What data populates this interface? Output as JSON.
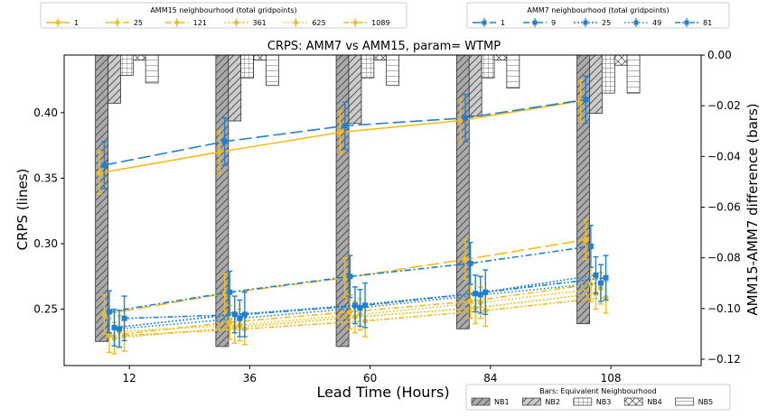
{
  "chart_data": {
    "type": "line",
    "title": "CRPS: AMM7 vs AMM15, param= WTMP",
    "xlabel": "Lead Time (Hours)",
    "ylabel": "CRPS (lines)",
    "y2label": "AMM15-AMM7 difference (bars)",
    "x_ticks": [
      12,
      36,
      60,
      84,
      108
    ],
    "xlim": [
      -1,
      126
    ],
    "ylim": [
      0.207,
      0.444
    ],
    "y_ticks": [
      0.25,
      0.3,
      0.35,
      0.4
    ],
    "y2lim": [
      -0.1225,
      0.0
    ],
    "y2_ticks": [
      -0.12,
      -0.1,
      -0.08,
      -0.06,
      -0.04,
      -0.02,
      0.0
    ],
    "grid": false,
    "legend_amm15": {
      "title": "AMM15 neighbourhood (total gridpoints)",
      "placement": "top-left",
      "color": "#f5bc16",
      "entries": [
        "1",
        "25",
        "121",
        "361",
        "625",
        "1089"
      ]
    },
    "legend_amm7": {
      "title": "AMM7 neighbourhood (total gridpoints)",
      "placement": "top-right",
      "color": "#1f80d0",
      "entries": [
        "1",
        "9",
        "25",
        "49",
        "81"
      ]
    },
    "legend_bars": {
      "title": "Bars: Equivalent Neighbourhood",
      "placement": "bottom-right",
      "entries": [
        "NB1",
        "NB2",
        "NB3",
        "NB4",
        "NB5"
      ]
    },
    "amm15_series": [
      {
        "name": "1",
        "x": [
          6,
          30,
          54,
          78,
          102
        ],
        "values": [
          0.354,
          0.37,
          0.385,
          0.394,
          0.409
        ],
        "err": 0.016,
        "dash": "solid"
      },
      {
        "name": "25",
        "x": [
          7,
          31,
          55,
          79,
          103
        ],
        "values": [
          0.246,
          0.262,
          0.274,
          0.288,
          0.303
        ],
        "err": 0.015,
        "dash": "long"
      },
      {
        "name": "121",
        "x": [
          8,
          32,
          56,
          80,
          104
        ],
        "values": [
          0.23,
          0.24,
          0.248,
          0.256,
          0.269
        ],
        "err": 0.013,
        "dash": "dashdot"
      },
      {
        "name": "361",
        "x": [
          9,
          33,
          57,
          81,
          105
        ],
        "values": [
          0.228,
          0.236,
          0.244,
          0.251,
          0.262
        ],
        "err": 0.012,
        "dash": "dot"
      },
      {
        "name": "625",
        "x": [
          10,
          34,
          58,
          82,
          106
        ],
        "values": [
          0.233,
          0.238,
          0.246,
          0.255,
          0.266
        ],
        "err": 0.012,
        "dash": "dotted-dense"
      },
      {
        "name": "1089",
        "x": [
          11,
          35,
          59,
          83,
          107
        ],
        "values": [
          0.23,
          0.235,
          0.241,
          0.249,
          0.259
        ],
        "err": 0.012,
        "dash": "dashdotdot"
      }
    ],
    "amm7_series": [
      {
        "name": "1",
        "x": [
          7,
          31,
          55,
          79,
          103
        ],
        "values": [
          0.36,
          0.378,
          0.39,
          0.396,
          0.41
        ],
        "err": 0.018,
        "dash": "long"
      },
      {
        "name": "9",
        "x": [
          8,
          32,
          56,
          80,
          104
        ],
        "values": [
          0.248,
          0.263,
          0.275,
          0.285,
          0.298
        ],
        "err": 0.016,
        "dash": "dashdot"
      },
      {
        "name": "25",
        "x": [
          9,
          33,
          57,
          81,
          105
        ],
        "values": [
          0.236,
          0.246,
          0.253,
          0.262,
          0.276
        ],
        "err": 0.014,
        "dash": "dot"
      },
      {
        "name": "49",
        "x": [
          10,
          34,
          58,
          82,
          106
        ],
        "values": [
          0.235,
          0.243,
          0.251,
          0.261,
          0.27
        ],
        "err": 0.014,
        "dash": "dotted-dense"
      },
      {
        "name": "81",
        "x": [
          11,
          35,
          59,
          83,
          107
        ],
        "values": [
          0.243,
          0.246,
          0.253,
          0.263,
          0.274
        ],
        "err": 0.017,
        "dash": "dashdotdot"
      }
    ],
    "bar_series": [
      {
        "name": "NB1",
        "hatch": "diag",
        "fill": "#aaaaaa",
        "x": [
          6.5,
          30.5,
          54.5,
          78.5,
          102.5
        ],
        "values": [
          -0.113,
          -0.115,
          -0.115,
          -0.108,
          -0.106
        ]
      },
      {
        "name": "NB2",
        "hatch": "diag",
        "fill": "#cccccc",
        "x": [
          9,
          33,
          57,
          81,
          105
        ],
        "values": [
          -0.019,
          -0.026,
          -0.027,
          -0.024,
          -0.023
        ]
      },
      {
        "name": "NB3",
        "hatch": "grid",
        "fill": "#ffffff",
        "x": [
          11.5,
          35.5,
          59.5,
          83.5,
          107.5
        ],
        "values": [
          -0.008,
          -0.009,
          -0.009,
          -0.009,
          -0.015
        ]
      },
      {
        "name": "NB4",
        "hatch": "cross",
        "fill": "#ffffff",
        "x": [
          14,
          38,
          62,
          86,
          110
        ],
        "values": [
          -0.002,
          -0.002,
          -0.002,
          -0.002,
          -0.004
        ]
      },
      {
        "name": "NB5",
        "hatch": "horiz",
        "fill": "#ffffff",
        "x": [
          16.5,
          40.5,
          64.5,
          88.5,
          112.5
        ],
        "values": [
          -0.011,
          -0.012,
          -0.012,
          -0.013,
          -0.015
        ]
      }
    ]
  }
}
